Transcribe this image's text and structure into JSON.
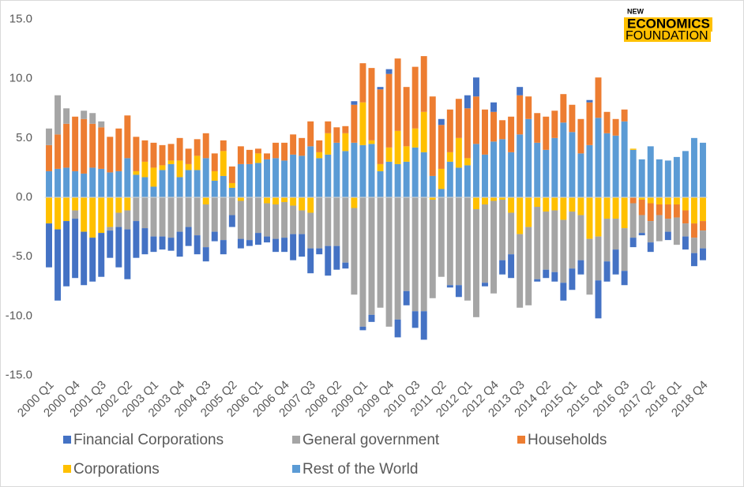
{
  "chart_data": {
    "type": "stacked_bar",
    "logo": [
      "NEW",
      "ECONOMICS",
      "FOUNDATION"
    ],
    "categories": [
      "2000 Q1",
      null,
      null,
      "2000 Q4",
      null,
      null,
      "2001 Q3",
      null,
      null,
      "2002 Q2",
      null,
      null,
      "2003 Q1",
      null,
      null,
      "2003 Q4",
      null,
      null,
      "2004 Q3",
      null,
      null,
      "2005 Q2",
      null,
      null,
      "2006 Q1",
      null,
      null,
      "2006 Q4",
      null,
      null,
      "2007 Q3",
      null,
      null,
      "2008 Q2",
      null,
      null,
      "2009 Q1",
      null,
      null,
      "2009 Q4",
      null,
      null,
      "2010 Q3",
      null,
      null,
      "2011 Q2",
      null,
      null,
      "2012 Q1",
      null,
      null,
      "2012 Q4",
      null,
      null,
      "2013 Q3",
      null,
      null,
      "2014 Q2",
      null,
      null,
      "2015 Q1",
      null,
      null,
      "2015 Q4",
      null,
      null,
      "2016 Q3",
      null,
      null,
      "2017 Q2",
      null,
      null,
      "2018 Q1",
      null,
      null,
      "2018 Q4"
    ],
    "series": [
      {
        "name": "Financial Corporations",
        "color": "#4472c4",
        "values": [
          -3.7,
          -6.0,
          -5.5,
          -5.0,
          -4.5,
          -3.7,
          -3.7,
          -2.3,
          -3.4,
          -4.2,
          -3.1,
          -2.2,
          -1.3,
          -1.1,
          -1.1,
          -2.1,
          -1.6,
          -1.6,
          -1.2,
          -0.8,
          -1.2,
          -1.0,
          -0.8,
          -0.5,
          -1.0,
          -0.5,
          -1.1,
          -1.2,
          -2.2,
          -1.9,
          -2.1,
          -0.5,
          -2.5,
          -2.0,
          -0.5,
          0.3,
          -0.3,
          -0.6,
          0.2,
          0.4,
          -1.5,
          -1.2,
          -1.4,
          -2.4,
          0,
          0.5,
          -0.2,
          -1.0,
          1.1,
          1.6,
          -0.3,
          0.8,
          -1.2,
          -2.0,
          0.7,
          0,
          -0.2,
          -0.7,
          -0.8,
          -1.5,
          -1.8,
          -1.2,
          0.2,
          -3.2,
          -1.7,
          -2.1,
          -1.2,
          -0.8,
          -0.2,
          -0.8,
          0,
          -0.7,
          0,
          -1.1,
          -1.1,
          -1.0
        ]
      },
      {
        "name": "General government",
        "color": "#a5a5a5",
        "values": [
          1.4,
          3.3,
          1.3,
          -0.7,
          0.7,
          0.9,
          0.5,
          -0.3,
          -1.2,
          -1.6,
          -2.0,
          -2.6,
          -3.3,
          -3.3,
          -3.4,
          -2.9,
          -2.5,
          -3.2,
          -3.6,
          -2.9,
          -3.6,
          -1.5,
          -3.2,
          -3.6,
          -3.0,
          -2.8,
          -2.9,
          -3.0,
          -2.4,
          -2.0,
          -3.0,
          -4.3,
          -4.1,
          -4.1,
          -5.5,
          -7.3,
          -10.9,
          -9.9,
          -9.3,
          -10.9,
          -10.3,
          -7.9,
          -9.6,
          -9.6,
          -8.3,
          -6.7,
          -7.4,
          -7.4,
          -8.7,
          -9.1,
          -6.6,
          -7.8,
          -5.1,
          -3.5,
          -6.2,
          -6.6,
          -6.1,
          -4.9,
          -5.2,
          -5.3,
          -4.8,
          -3.8,
          -4.7,
          -3.7,
          -3.6,
          -2.6,
          -3.6,
          -2.9,
          -1.5,
          -1.8,
          -2.2,
          -1.1,
          -2.3,
          -1.1,
          -1.3,
          -1.5
        ]
      },
      {
        "name": "Households",
        "color": "#ed7d31",
        "values": [
          2.2,
          2.9,
          3.7,
          4.6,
          4.6,
          3.7,
          3.5,
          3.0,
          3.6,
          3.6,
          2.9,
          1.8,
          2.1,
          1.7,
          1.4,
          1.9,
          1.3,
          1.4,
          2.1,
          1.5,
          0.9,
          1.4,
          1.5,
          1.2,
          0.4,
          0.5,
          1.3,
          1.5,
          1.7,
          1.5,
          2.1,
          1.0,
          1.0,
          1.3,
          0.6,
          3.2,
          3.3,
          6.1,
          6.3,
          6.2,
          6.1,
          5.0,
          5.2,
          4.7,
          6.7,
          3.7,
          3.6,
          3.3,
          4.2,
          4.0,
          3.8,
          2.5,
          1.6,
          3.0,
          3.3,
          1.9,
          2.5,
          2.8,
          2.3,
          2.4,
          2.3,
          2.9,
          3.6,
          3.4,
          1.8,
          1.4,
          1.0,
          -0.5,
          -1.3,
          -1.5,
          -0.9,
          -1.2,
          -1.1,
          -1.1,
          -1.2,
          -0.8
        ]
      },
      {
        "name": "Corporations",
        "color": "#ffc000",
        "values": [
          -2.2,
          -2.7,
          -2.0,
          -1.1,
          -2.9,
          -3.4,
          -3.0,
          -2.5,
          -1.3,
          -1.1,
          0.3,
          1.3,
          1.6,
          0.4,
          0.3,
          1.4,
          0.5,
          1.2,
          -0.6,
          0.8,
          2.1,
          0.4,
          -0.3,
          0,
          0.8,
          -0.5,
          -0.6,
          -0.4,
          -0.7,
          -1.1,
          -1.3,
          0.5,
          1.8,
          0,
          1.5,
          -0.9,
          3.6,
          0.3,
          0.6,
          1.2,
          2.8,
          1.3,
          1.6,
          3.4,
          -0.2,
          1.7,
          0.8,
          2.5,
          0.6,
          -1.0,
          -0.6,
          -0.3,
          -0.2,
          -1.3,
          -3.1,
          -2.5,
          -0.8,
          -1.2,
          -1.1,
          -1.9,
          -1.2,
          -1.5,
          -3.5,
          -3.3,
          -1.8,
          -1.8,
          -2.6,
          0.1,
          -0.2,
          -0.5,
          -0.6,
          -0.6,
          -0.6,
          -1.1,
          -2.2,
          -2.0
        ]
      },
      {
        "name": "Rest of the World",
        "color": "#5b9bd5",
        "values": [
          2.2,
          2.4,
          2.5,
          2.2,
          2.0,
          2.5,
          2.4,
          2.1,
          2.2,
          3.3,
          1.9,
          1.7,
          0.9,
          2.3,
          2.8,
          1.7,
          2.3,
          2.3,
          3.3,
          1.4,
          1.8,
          0.8,
          2.8,
          2.8,
          2.9,
          3.2,
          3.3,
          3.1,
          3.6,
          3.5,
          4.3,
          3.3,
          3.6,
          4.6,
          3.9,
          4.6,
          4.4,
          4.5,
          2.2,
          3.0,
          2.8,
          3.0,
          4.2,
          3.8,
          1.8,
          0.7,
          3.0,
          2.5,
          2.7,
          4.5,
          3.6,
          4.7,
          4.9,
          3.8,
          5.3,
          6.6,
          4.6,
          4.0,
          5.0,
          6.3,
          5.5,
          3.7,
          4.4,
          6.7,
          5.4,
          5.2,
          6.4,
          4.0,
          3.2,
          4.3,
          3.2,
          3.1,
          3.4,
          3.9,
          5.0,
          4.6
        ]
      }
    ],
    "ylim": [
      -15,
      15
    ],
    "yticks": [
      {
        "value": -15,
        "label": "-15.0"
      },
      {
        "value": -10,
        "label": "-10.0"
      },
      {
        "value": -5,
        "label": "-5.0"
      },
      {
        "value": 0,
        "label": "0.0"
      },
      {
        "value": 5,
        "label": "5.0"
      },
      {
        "value": 10,
        "label": "10.0"
      },
      {
        "value": 15,
        "label": "15.0"
      }
    ],
    "grid": false
  }
}
